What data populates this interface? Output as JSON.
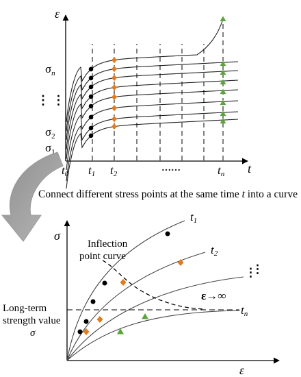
{
  "top": {
    "y_axis_symbol": "ε",
    "x_axis_symbol": "t",
    "stress_labels": {
      "sn": "σ",
      "sn_sub": "n",
      "s2": "σ",
      "s2_sub": "2",
      "s1": "σ",
      "s1_sub": "1",
      "dots": "⋮ ⋮"
    },
    "time_labels": {
      "t0": "t",
      "t0_sub": "0",
      "t1": "t",
      "t1_sub": "1",
      "t2": "t",
      "t2_sub": "2",
      "ellipsis": "……",
      "tn": "t",
      "tn_sub": "n"
    },
    "marker_colors": {
      "t1": "#000000",
      "t2": "#e07b1f",
      "tn": "#5aa53a"
    }
  },
  "caption": {
    "prefix": "Connect different stress points at the same time ",
    "var": "t",
    "suffix": " into a curve"
  },
  "bottom": {
    "y_axis_symbol": "σ",
    "x_axis_symbol": "ε",
    "inflection_label_line1": "Inflection",
    "inflection_label_line2": "point curve",
    "long_term_line1": "Long-term",
    "long_term_line2": "strength value",
    "long_term_symbol": "σ",
    "limit_label": "ε→∞",
    "curve_labels": {
      "t1": "t",
      "t1_sub": "1",
      "t2": "t",
      "t2_sub": "2",
      "tn": "t",
      "tn_sub": "n",
      "dots": "⋮"
    }
  }
}
